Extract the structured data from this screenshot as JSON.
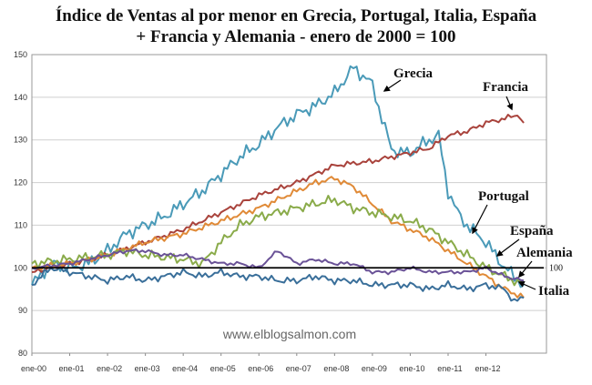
{
  "chart_data": {
    "type": "line",
    "title_line1": "Índice de Ventas al por menor en Grecia, Portugal, Italia, España",
    "title_line2": "+ Francia y Alemania - enero de 2000 = 100",
    "watermark": "www.elblogsalmon.com",
    "ylim": [
      80,
      150
    ],
    "yticks": [
      "80",
      "90",
      "100",
      "110",
      "120",
      "130",
      "140",
      "150"
    ],
    "x_tick_labels": [
      "ene-00",
      "ene-01",
      "ene-02",
      "ene-03",
      "ene-04",
      "ene-05",
      "ene-06",
      "ene-07",
      "ene-08",
      "ene-09",
      "ene-10",
      "ene-11",
      "ene-12"
    ],
    "x_unit": "years since ene-00",
    "xlim": [
      0,
      13.6
    ],
    "reference_line": {
      "value": 100,
      "label": "100"
    },
    "grid": true,
    "series": [
      {
        "name": "Grecia",
        "color": "#4a9ab8",
        "points": [
          [
            0,
            96
          ],
          [
            0.5,
            101
          ],
          [
            1,
            100
          ],
          [
            1.5,
            101
          ],
          [
            2,
            104
          ],
          [
            2.5,
            108
          ],
          [
            3,
            110
          ],
          [
            3.5,
            112
          ],
          [
            4,
            115
          ],
          [
            4.5,
            118
          ],
          [
            5,
            122
          ],
          [
            5.5,
            126
          ],
          [
            6,
            129
          ],
          [
            6.5,
            133
          ],
          [
            7,
            136
          ],
          [
            7.5,
            138
          ],
          [
            8,
            141
          ],
          [
            8.25,
            144
          ],
          [
            8.5,
            147
          ],
          [
            8.75,
            145
          ],
          [
            9,
            143
          ],
          [
            9.25,
            135
          ],
          [
            9.5,
            128
          ],
          [
            9.75,
            127
          ],
          [
            10,
            127
          ],
          [
            10.5,
            130
          ],
          [
            10.75,
            131
          ],
          [
            11,
            118
          ],
          [
            11.25,
            113
          ],
          [
            11.5,
            110
          ],
          [
            12,
            106
          ],
          [
            12.5,
            100
          ],
          [
            13,
            96
          ]
        ]
      },
      {
        "name": "Francia",
        "color": "#a9433c",
        "points": [
          [
            0,
            99
          ],
          [
            1,
            101
          ],
          [
            2,
            103
          ],
          [
            3,
            106
          ],
          [
            4,
            109
          ],
          [
            5,
            113
          ],
          [
            6,
            117
          ],
          [
            7,
            120
          ],
          [
            8,
            124
          ],
          [
            9,
            125
          ],
          [
            9.5,
            126
          ],
          [
            10,
            127
          ],
          [
            10.5,
            128
          ],
          [
            11,
            131
          ],
          [
            11.5,
            132
          ],
          [
            12,
            134
          ],
          [
            12.5,
            135
          ],
          [
            12.85,
            136
          ],
          [
            13,
            134
          ]
        ]
      },
      {
        "name": "Portugal",
        "color": "#e08a37",
        "points": [
          [
            0,
            100
          ],
          [
            1,
            101
          ],
          [
            2,
            103
          ],
          [
            3,
            106
          ],
          [
            4,
            108
          ],
          [
            5,
            111
          ],
          [
            6,
            114
          ],
          [
            7,
            118
          ],
          [
            7.5,
            120
          ],
          [
            8,
            121
          ],
          [
            8.5,
            119
          ],
          [
            9,
            115
          ],
          [
            9.5,
            111
          ],
          [
            10,
            109
          ],
          [
            10.5,
            107
          ],
          [
            11,
            104
          ],
          [
            11.5,
            101
          ],
          [
            12,
            98
          ],
          [
            12.5,
            95
          ],
          [
            13,
            93
          ]
        ]
      },
      {
        "name": "España",
        "color": "#8aab4a",
        "points": [
          [
            0,
            101
          ],
          [
            1,
            102
          ],
          [
            2,
            103
          ],
          [
            2.5,
            104
          ],
          [
            3,
            103
          ],
          [
            4,
            102
          ],
          [
            4.5,
            101
          ],
          [
            5,
            106
          ],
          [
            5.5,
            110
          ],
          [
            6,
            112
          ],
          [
            6.5,
            113
          ],
          [
            7,
            114
          ],
          [
            7.5,
            115
          ],
          [
            8,
            116
          ],
          [
            8.5,
            114
          ],
          [
            9,
            113
          ],
          [
            9.5,
            112
          ],
          [
            10,
            111
          ],
          [
            10.5,
            109
          ],
          [
            11,
            106
          ],
          [
            11.5,
            103
          ],
          [
            12,
            100
          ],
          [
            12.5,
            98
          ],
          [
            13,
            96
          ]
        ]
      },
      {
        "name": "Alemania",
        "color": "#6a5297",
        "points": [
          [
            0,
            100
          ],
          [
            1,
            101
          ],
          [
            2,
            103
          ],
          [
            2.5,
            104
          ],
          [
            3,
            104
          ],
          [
            3.5,
            103
          ],
          [
            4,
            103
          ],
          [
            4.5,
            102
          ],
          [
            5,
            101
          ],
          [
            5.5,
            101
          ],
          [
            6,
            100
          ],
          [
            6.5,
            104
          ],
          [
            7,
            101
          ],
          [
            7.5,
            102
          ],
          [
            8,
            101
          ],
          [
            8.5,
            101
          ],
          [
            9,
            99
          ],
          [
            9.5,
            99
          ],
          [
            10,
            100
          ],
          [
            10.5,
            99
          ],
          [
            11,
            99
          ],
          [
            11.5,
            99
          ],
          [
            12,
            100
          ],
          [
            12.5,
            98
          ],
          [
            13,
            97
          ]
        ]
      },
      {
        "name": "Italia",
        "color": "#3a6f9a",
        "points": [
          [
            0,
            96
          ],
          [
            0.5,
            100
          ],
          [
            1,
            99
          ],
          [
            1.5,
            98
          ],
          [
            2,
            97
          ],
          [
            2.5,
            98
          ],
          [
            3,
            97
          ],
          [
            3.5,
            98
          ],
          [
            4,
            99
          ],
          [
            4.5,
            98
          ],
          [
            5,
            99
          ],
          [
            5.5,
            98
          ],
          [
            6,
            98
          ],
          [
            6.5,
            97
          ],
          [
            7,
            97
          ],
          [
            7.5,
            98
          ],
          [
            8,
            97
          ],
          [
            8.5,
            97
          ],
          [
            9,
            96
          ],
          [
            9.5,
            96
          ],
          [
            10,
            96
          ],
          [
            10.5,
            95
          ],
          [
            11,
            96
          ],
          [
            11.5,
            95
          ],
          [
            12,
            96
          ],
          [
            12.5,
            95
          ],
          [
            12.75,
            92
          ],
          [
            13,
            93
          ]
        ]
      }
    ],
    "annotations": [
      {
        "text": "Grecia"
      },
      {
        "text": "Francia"
      },
      {
        "text": "Portugal"
      },
      {
        "text": "España"
      },
      {
        "text": "Alemania"
      },
      {
        "text": "Italia"
      }
    ]
  }
}
